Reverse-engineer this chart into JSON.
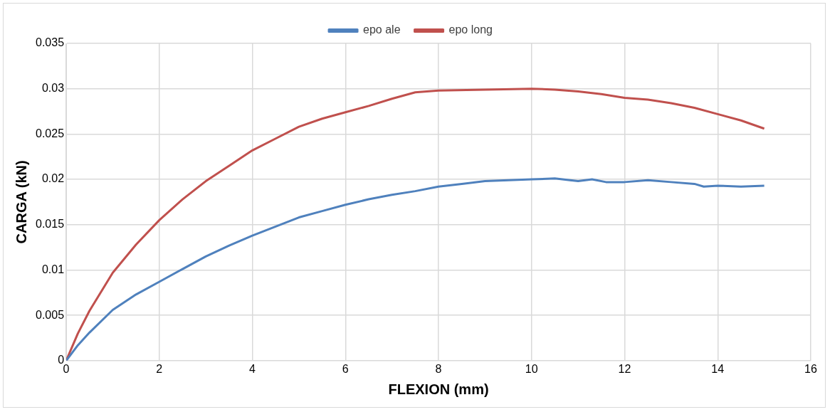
{
  "chart_data": {
    "type": "line",
    "xlabel": "FLEXION (mm)",
    "ylabel": "CARGA (kN)",
    "xlim": [
      0,
      16
    ],
    "xticks": [
      0,
      2,
      4,
      6,
      8,
      10,
      12,
      14,
      16
    ],
    "ylim": [
      0,
      0.035
    ],
    "yticks": [
      0,
      0.005,
      0.01,
      0.015,
      0.02,
      0.025,
      0.03,
      0.035
    ],
    "grid": true,
    "legend": "top",
    "marker": "none",
    "line_style": "solid",
    "series": [
      {
        "name": "epo ale",
        "color": "#4f81bd",
        "x": [
          0,
          0.25,
          0.5,
          1,
          1.5,
          2,
          2.5,
          3,
          3.5,
          4,
          4.5,
          5,
          5.5,
          6,
          6.5,
          7,
          7.5,
          8,
          8.5,
          9,
          9.5,
          10,
          10.5,
          11,
          11.3,
          11.6,
          12,
          12.5,
          13,
          13.5,
          13.7,
          14,
          14.5,
          15
        ],
        "values": [
          0,
          0.0017,
          0.0031,
          0.0056,
          0.0073,
          0.0087,
          0.0101,
          0.0115,
          0.0127,
          0.0138,
          0.0148,
          0.0158,
          0.0165,
          0.0172,
          0.0178,
          0.0183,
          0.0187,
          0.0192,
          0.0195,
          0.0198,
          0.0199,
          0.02,
          0.0201,
          0.0198,
          0.02,
          0.0197,
          0.0197,
          0.0199,
          0.0197,
          0.0195,
          0.0192,
          0.0193,
          0.0192,
          0.0193
        ]
      },
      {
        "name": "epo long",
        "color": "#c0504d",
        "x": [
          0,
          0.25,
          0.5,
          1,
          1.5,
          2,
          2.5,
          3,
          3.5,
          4,
          4.5,
          5,
          5.5,
          6,
          6.5,
          7,
          7.5,
          8,
          9,
          10,
          10.5,
          11,
          11.5,
          12,
          12.5,
          13,
          13.5,
          14,
          14.5,
          15
        ],
        "values": [
          0,
          0.003,
          0.0055,
          0.0097,
          0.0128,
          0.0155,
          0.0178,
          0.0198,
          0.0215,
          0.0232,
          0.0245,
          0.0258,
          0.0267,
          0.0274,
          0.0281,
          0.0289,
          0.0296,
          0.0298,
          0.0299,
          0.03,
          0.0299,
          0.0297,
          0.0294,
          0.029,
          0.0288,
          0.0284,
          0.0279,
          0.0272,
          0.0265,
          0.0256
        ]
      }
    ]
  }
}
